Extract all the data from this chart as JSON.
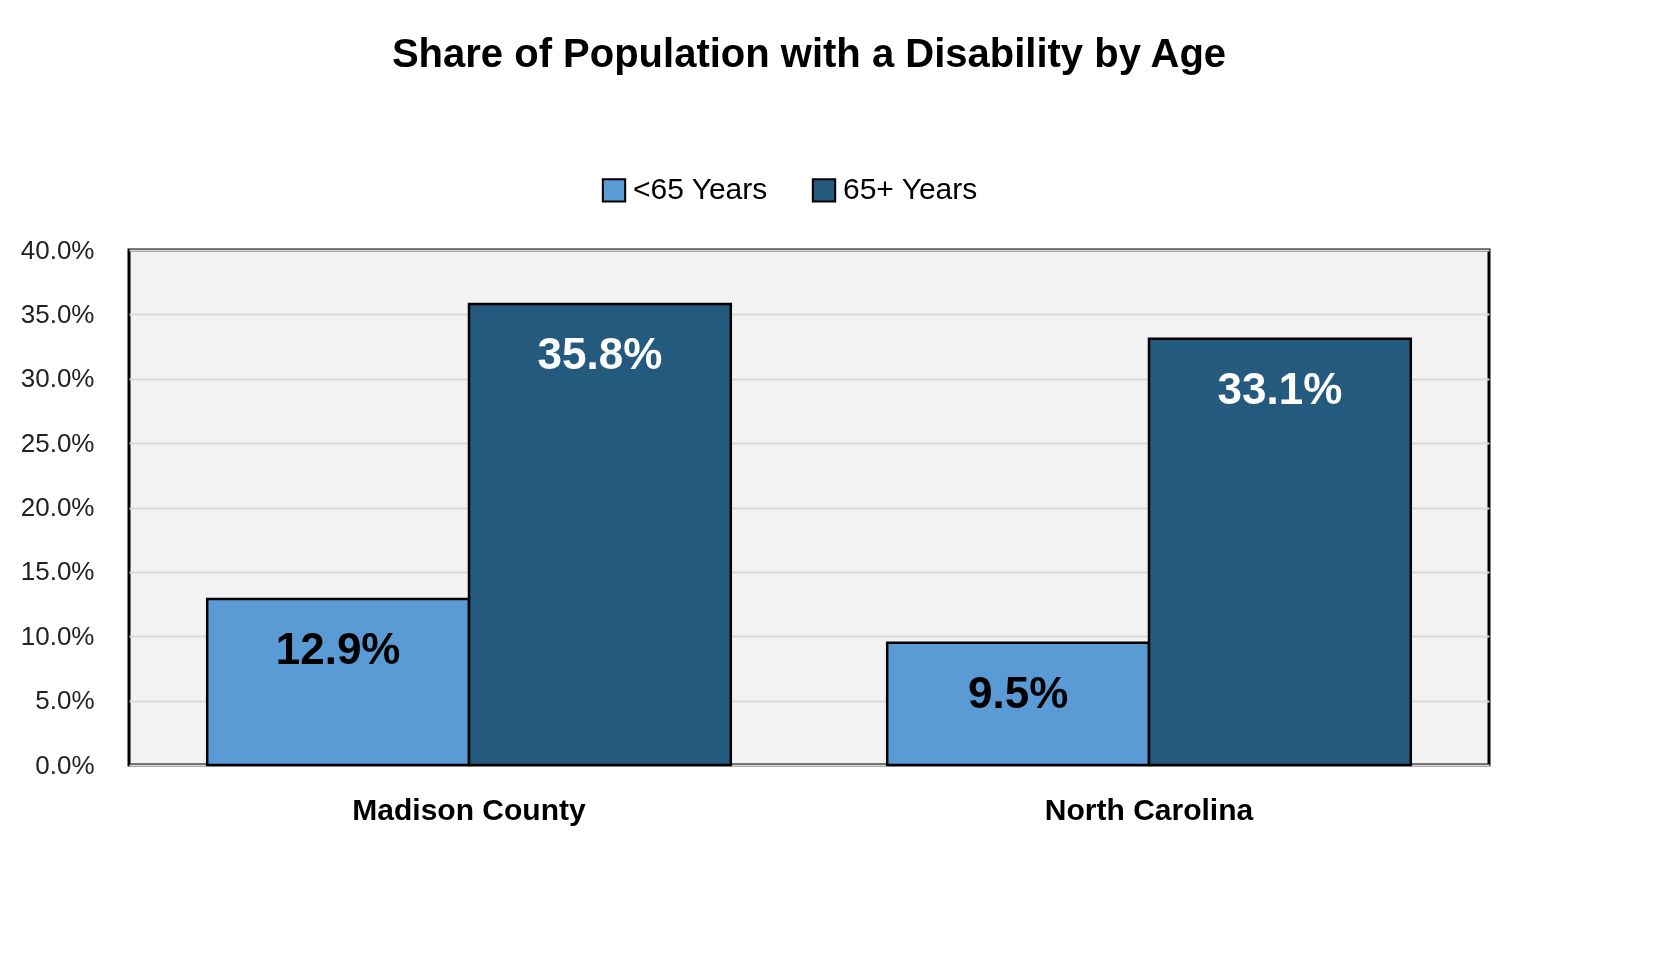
{
  "chart_data": {
    "type": "bar",
    "title": "Share of Population with a Disability by Age",
    "categories": [
      "Madison County",
      "North Carolina"
    ],
    "series": [
      {
        "name": "<65 Years",
        "color": "#5b9bd5",
        "values": [
          12.9,
          9.5
        ],
        "value_labels": [
          "12.9%",
          "9.5%"
        ]
      },
      {
        "name": "65+ Years",
        "color": "#255a7f",
        "values": [
          35.8,
          33.1
        ],
        "value_labels": [
          "35.8%",
          "33.1%"
        ]
      }
    ],
    "ylim": [
      0,
      40
    ],
    "yticks": [
      {
        "value": 0,
        "label": "0.0%"
      },
      {
        "value": 5,
        "label": "5.0%"
      },
      {
        "value": 10,
        "label": "10.0%"
      },
      {
        "value": 15,
        "label": "15.0%"
      },
      {
        "value": 20,
        "label": "20.0%"
      },
      {
        "value": 25,
        "label": "25.0%"
      },
      {
        "value": 30,
        "label": "30.0%"
      },
      {
        "value": 35,
        "label": "35.0%"
      },
      {
        "value": 40,
        "label": "40.0%"
      }
    ],
    "grid": "y",
    "legend": "top"
  }
}
